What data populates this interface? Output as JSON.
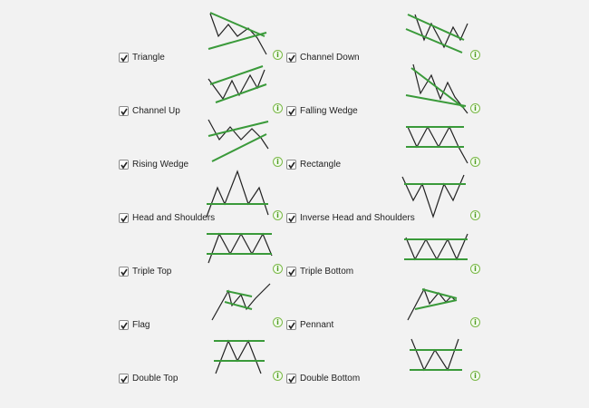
{
  "patterns": [
    {
      "key": "triangle",
      "label": "Triangle",
      "checked": true
    },
    {
      "key": "channel-up",
      "label": "Channel Up",
      "checked": true
    },
    {
      "key": "rising-wedge",
      "label": "Rising Wedge",
      "checked": true
    },
    {
      "key": "head-and-shoulders",
      "label": "Head and Shoulders",
      "checked": true
    },
    {
      "key": "triple-top",
      "label": "Triple Top",
      "checked": true
    },
    {
      "key": "flag",
      "label": "Flag",
      "checked": true
    },
    {
      "key": "double-top",
      "label": "Double Top",
      "checked": true
    },
    {
      "key": "channel-down",
      "label": "Channel Down",
      "checked": true
    },
    {
      "key": "falling-wedge",
      "label": "Falling Wedge",
      "checked": true
    },
    {
      "key": "rectangle",
      "label": "Rectangle",
      "checked": true
    },
    {
      "key": "inverse-head-and-shoulders",
      "label": "Inverse Head and Shoulders",
      "checked": true
    },
    {
      "key": "triple-bottom",
      "label": "Triple Bottom",
      "checked": true
    },
    {
      "key": "pennant",
      "label": "Pennant",
      "checked": true
    },
    {
      "key": "double-bottom",
      "label": "Double Bottom",
      "checked": true
    }
  ],
  "icons": {
    "checkbox": "checkmark-icon",
    "info": "info-icon"
  },
  "info_glyph": "i",
  "colors": {
    "trendline": "#3a9a3a",
    "price": "#222222",
    "info": "#5aa52a",
    "background": "#f2f2f2"
  }
}
